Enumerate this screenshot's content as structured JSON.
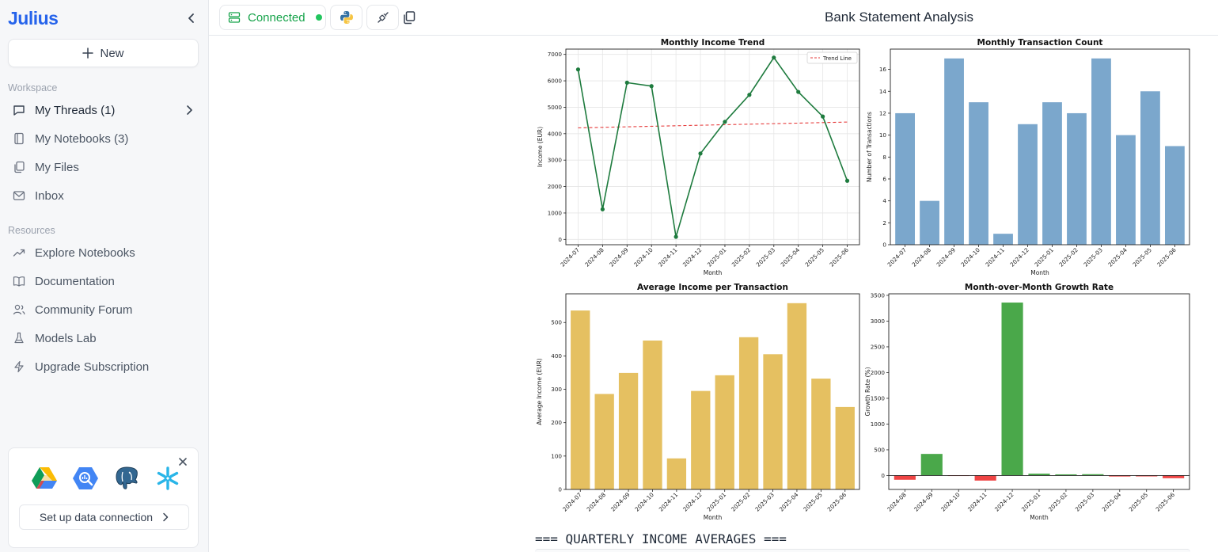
{
  "app": {
    "logo": "Julius"
  },
  "sidebar": {
    "new_label": "New",
    "workspace_label": "Workspace",
    "workspace_items": [
      {
        "label": "My Threads (1)",
        "icon": "message-square-icon"
      },
      {
        "label": "My Notebooks (3)",
        "icon": "notebook-icon"
      },
      {
        "label": "My Files",
        "icon": "files-icon"
      },
      {
        "label": "Inbox",
        "icon": "mail-icon"
      }
    ],
    "resources_label": "Resources",
    "resource_items": [
      {
        "label": "Explore Notebooks",
        "icon": "trending-up-icon"
      },
      {
        "label": "Documentation",
        "icon": "book-open-icon"
      },
      {
        "label": "Community Forum",
        "icon": "users-icon"
      },
      {
        "label": "Models Lab",
        "icon": "flask-icon"
      },
      {
        "label": "Upgrade Subscription",
        "icon": "zap-icon"
      }
    ],
    "connection_card": {
      "button_label": "Set up data connection",
      "logos": [
        "google-drive-icon",
        "bigquery-icon",
        "postgresql-icon",
        "snowflake-icon"
      ]
    }
  },
  "topbar": {
    "connected_label": "Connected",
    "title": "Bank Statement Analysis"
  },
  "output": {
    "quarterly_heading": "=== QUARTERLY INCOME AVERAGES ==="
  },
  "colors": {
    "brand": "#2563eb",
    "connected": "#16a34a",
    "line": "#1e7b3e",
    "trend": "#e63b3b",
    "bar_blue": "#7ba7cc",
    "bar_gold": "#e5c061",
    "bar_green": "#4aa84a",
    "bar_red": "#ef4444"
  },
  "chart_data": [
    {
      "type": "line",
      "title": "Monthly Income Trend",
      "xlabel": "Month",
      "ylabel": "Income (EUR)",
      "categories": [
        "2024-07",
        "2024-08",
        "2024-09",
        "2024-10",
        "2024-11",
        "2024-12",
        "2025-01",
        "2025-02",
        "2025-03",
        "2025-04",
        "2025-05",
        "2025-06"
      ],
      "series": [
        {
          "values": [
            6430,
            1140,
            5930,
            5800,
            100,
            3250,
            4450,
            5470,
            6880,
            5580,
            4650,
            2220
          ]
        },
        {
          "name": "Trend Line",
          "values": [
            4220,
            4240,
            4260,
            4280,
            4300,
            4320,
            4340,
            4360,
            4380,
            4400,
            4420,
            4440
          ]
        }
      ],
      "ylim": [
        -200,
        7200
      ],
      "yticks": [
        0,
        1000,
        2000,
        3000,
        4000,
        5000,
        6000,
        7000
      ],
      "grid": true,
      "legend": "top-right"
    },
    {
      "type": "bar",
      "title": "Monthly Transaction Count",
      "xlabel": "Month",
      "ylabel": "Number of Transactions",
      "categories": [
        "2024-07",
        "2024-08",
        "2024-09",
        "2024-10",
        "2024-11",
        "2024-12",
        "2025-01",
        "2025-02",
        "2025-03",
        "2025-04",
        "2025-05",
        "2025-06"
      ],
      "values": [
        12,
        4,
        17,
        13,
        1,
        11,
        13,
        12,
        17,
        10,
        14,
        9
      ],
      "ylim": [
        0,
        17.85
      ],
      "yticks": [
        0,
        2,
        4,
        6,
        8,
        10,
        12,
        14,
        16
      ],
      "grid": false
    },
    {
      "type": "bar",
      "title": "Average Income per Transaction",
      "xlabel": "Month",
      "ylabel": "Average Income (EUR)",
      "categories": [
        "2024-07",
        "2024-08",
        "2024-09",
        "2024-10",
        "2024-11",
        "2024-12",
        "2025-01",
        "2025-02",
        "2025-03",
        "2025-04",
        "2025-05",
        "2025-06"
      ],
      "values": [
        536,
        286,
        349,
        446,
        93,
        295,
        342,
        456,
        405,
        558,
        332,
        247
      ],
      "ylim": [
        0,
        586
      ],
      "yticks": [
        0,
        100,
        200,
        300,
        400,
        500
      ],
      "grid": false
    },
    {
      "type": "bar",
      "title": "Month-over-Month Growth Rate",
      "xlabel": "Month",
      "ylabel": "Growth Rate (%)",
      "categories": [
        "2024-08",
        "2024-09",
        "2024-10",
        "2024-11",
        "2024-12",
        "2025-01",
        "2025-02",
        "2025-03",
        "2025-04",
        "2025-05",
        "2025-06"
      ],
      "values": [
        -82,
        420,
        -2,
        -98,
        3360,
        37,
        23,
        26,
        -19,
        -17,
        -52
      ],
      "ylim": [
        -270,
        3530
      ],
      "yticks": [
        0,
        500,
        1000,
        1500,
        2000,
        2500,
        3000,
        3500
      ],
      "grid": false
    }
  ]
}
